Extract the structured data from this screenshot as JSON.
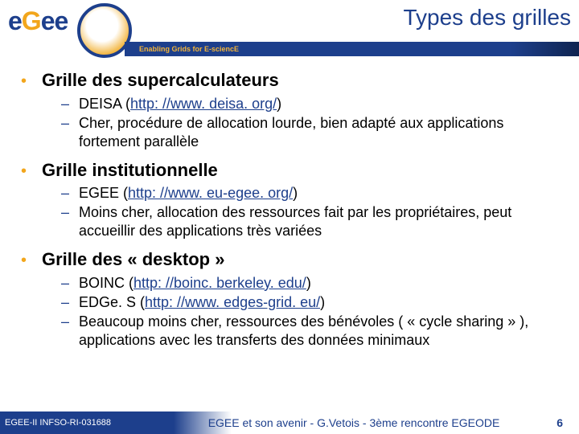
{
  "header": {
    "logo_text_e1": "e",
    "logo_text_g": "G",
    "logo_text_e2": "e",
    "logo_text_e3": "e",
    "logo_color_blue": "#1d3f8c",
    "logo_color_gold": "#f2a61c",
    "title": "Types des grilles",
    "tagline": "Enabling Grids for E-sciencE"
  },
  "sections": [
    {
      "title": "Grille des supercalculateurs",
      "items": [
        {
          "prefix": "DEISA (",
          "link": "http: //www. deisa. org/",
          "suffix": ")"
        },
        {
          "text": "Cher, procédure de allocation lourde, bien adapté aux applications fortement parallèle"
        }
      ]
    },
    {
      "title": "Grille institutionnelle",
      "items": [
        {
          "prefix": "EGEE (",
          "link": "http: //www. eu-egee. org/",
          "suffix": ")"
        },
        {
          "text": "Moins cher, allocation des ressources fait par les propriétaires, peut accueillir des applications très variées"
        }
      ]
    },
    {
      "title": "Grille des « desktop »",
      "items": [
        {
          "prefix": "BOINC (",
          "link": "http: //boinc. berkeley. edu/",
          "suffix": ")"
        },
        {
          "prefix": "EDGe. S (",
          "link": "http: //www. edges-grid. eu/",
          "suffix": ")"
        },
        {
          "text": "Beaucoup moins cher, ressources des bénévoles ( « cycle sharing » ), applications avec les transferts des données minimaux"
        }
      ]
    }
  ],
  "footer": {
    "left": "EGEE-II INFSO-RI-031688",
    "center": "EGEE et son avenir - G.Vetois - 3ème rencontre EGEODE",
    "page": "6"
  }
}
